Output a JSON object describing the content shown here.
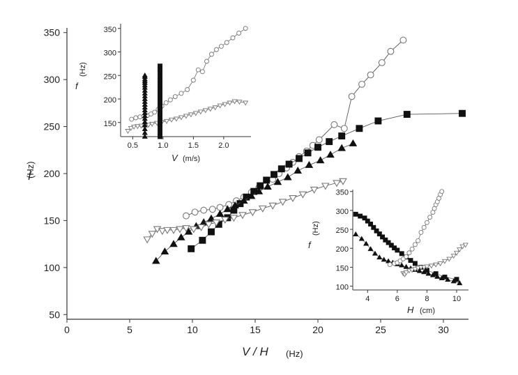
{
  "chart_data": [
    {
      "id": "main",
      "type": "scatter",
      "xlabel": "V / H",
      "xunit": "(Hz)",
      "ylabel": "f",
      "yunit": "(Hz)",
      "xlim": [
        0,
        32
      ],
      "ylim": [
        45,
        355
      ],
      "xticks": [
        0,
        5,
        10,
        15,
        20,
        25,
        30
      ],
      "yticks": [
        50,
        100,
        150,
        200,
        250,
        300,
        350
      ],
      "grid": false,
      "series": [
        {
          "marker": "circle-open",
          "x": [
            9.5,
            10.2,
            10.9,
            11.6,
            12.2,
            12.9,
            13.5,
            14.1,
            14.7,
            15.3,
            15.8,
            16.4,
            16.9,
            17.5,
            18.0,
            18.5,
            19.1,
            19.6,
            20.1,
            21.3,
            22.1,
            22.7,
            23.5,
            24.2,
            25.1,
            25.8,
            26.8
          ],
          "y": [
            155,
            159,
            161,
            162,
            164,
            167,
            171,
            175,
            180,
            185,
            188,
            194,
            200,
            206,
            212,
            218,
            224,
            230,
            236,
            252,
            248,
            282,
            295,
            305,
            318,
            330,
            342
          ]
        },
        {
          "marker": "square-filled",
          "x": [
            9.9,
            10.8,
            11.5,
            12.1,
            12.8,
            13.3,
            13.8,
            14.3,
            14.9,
            15.4,
            15.9,
            16.5,
            17.1,
            17.7,
            18.5,
            19.2,
            20.0,
            20.9,
            21.9,
            23.3,
            24.8,
            27.1,
            31.5
          ],
          "y": [
            120,
            129,
            138,
            146,
            153,
            161,
            168,
            175,
            181,
            187,
            193,
            199,
            205,
            210,
            216,
            222,
            228,
            234,
            240,
            248,
            256,
            263,
            264
          ]
        },
        {
          "marker": "triangle-filled",
          "x": [
            7.1,
            7.8,
            8.5,
            9.1,
            9.7,
            10.3,
            10.9,
            11.5,
            12.2,
            12.8,
            13.4,
            14.1,
            14.7,
            15.3,
            16.0,
            16.8,
            17.6,
            18.4,
            19.3,
            20.2,
            21.0,
            21.9,
            22.8
          ],
          "y": [
            107,
            117,
            125,
            132,
            138,
            144,
            148,
            152,
            157,
            162,
            166,
            171,
            176,
            181,
            186,
            191,
            196,
            203,
            209,
            214,
            220,
            227,
            232
          ]
        },
        {
          "marker": "triangle-down-open",
          "x": [
            6.4,
            6.8,
            7.2,
            7.6,
            8.0,
            8.5,
            9.0,
            9.5,
            10.1,
            10.7,
            11.3,
            11.9,
            12.6,
            13.3,
            14.0,
            14.8,
            15.6,
            16.4,
            17.2,
            18.0,
            18.8,
            19.7,
            20.6,
            21.5,
            22.0
          ],
          "y": [
            130,
            136,
            141,
            139,
            140,
            140,
            141,
            142,
            141,
            143,
            146,
            148,
            151,
            153,
            156,
            159,
            163,
            166,
            170,
            174,
            178,
            183,
            187,
            190,
            192
          ]
        }
      ]
    },
    {
      "id": "inset-velocity",
      "type": "scatter",
      "xlabel": "V",
      "xunit": "(m/s)",
      "ylabel": "f",
      "yunit": "(Hz)",
      "xlim": [
        0.3,
        2.45
      ],
      "ylim": [
        120,
        360
      ],
      "xticks": [
        0.5,
        1.0,
        1.5,
        2.0
      ],
      "xticklabels": [
        "0.5",
        "1.0",
        "1.5",
        "2.0"
      ],
      "yticks": [
        150,
        200,
        250,
        300,
        350
      ],
      "grid": false,
      "series": [
        {
          "marker": "circle-open",
          "x": [
            0.48,
            0.55,
            0.62,
            0.68,
            0.74,
            0.8,
            0.86,
            0.92,
            0.98,
            1.05,
            1.12,
            1.2,
            1.3,
            1.4,
            1.5,
            1.58,
            1.65,
            1.72,
            1.8,
            1.88,
            1.96,
            2.05,
            2.15,
            2.25,
            2.36
          ],
          "y": [
            157,
            160,
            162,
            163,
            165,
            168,
            172,
            178,
            185,
            192,
            198,
            205,
            212,
            220,
            240,
            262,
            258,
            280,
            295,
            305,
            312,
            320,
            330,
            340,
            350
          ]
        },
        {
          "marker": "triangle-down-open",
          "x": [
            0.42,
            0.47,
            0.52,
            0.58,
            0.64,
            0.7,
            0.76,
            0.82,
            0.9,
            0.98,
            1.06,
            1.14,
            1.22,
            1.3,
            1.38,
            1.46,
            1.54,
            1.62,
            1.7,
            1.78,
            1.86,
            1.94,
            2.02,
            2.1,
            2.18,
            2.26,
            2.36
          ],
          "y": [
            132,
            138,
            141,
            142,
            143,
            144,
            145,
            147,
            149,
            151,
            153,
            156,
            158,
            161,
            164,
            167,
            170,
            173,
            176,
            179,
            182,
            186,
            189,
            192,
            195,
            194,
            192
          ]
        },
        {
          "marker": "triangle-filled",
          "x": [
            0.7,
            0.7,
            0.7,
            0.7,
            0.7,
            0.7,
            0.7,
            0.7,
            0.7,
            0.7,
            0.7,
            0.7,
            0.7,
            0.7,
            0.7,
            0.7,
            0.7,
            0.7,
            0.7,
            0.7,
            0.7,
            0.7,
            0.7
          ],
          "y": [
            120,
            128,
            136,
            144,
            151,
            158,
            164,
            170,
            176,
            182,
            188,
            194,
            200,
            206,
            212,
            218,
            224,
            229,
            234,
            238,
            242,
            247,
            250
          ]
        },
        {
          "marker": "square-filled",
          "x": [
            0.95,
            0.95,
            0.95,
            0.95,
            0.95,
            0.95,
            0.95,
            0.95,
            0.95,
            0.95,
            0.95,
            0.95,
            0.95,
            0.95,
            0.95,
            0.95,
            0.95,
            0.95,
            0.95,
            0.95,
            0.95,
            0.95,
            0.95
          ],
          "y": [
            120,
            129,
            138,
            146,
            153,
            161,
            168,
            175,
            181,
            187,
            193,
            199,
            205,
            210,
            216,
            222,
            228,
            234,
            240,
            248,
            256,
            263,
            270
          ]
        }
      ]
    },
    {
      "id": "inset-height",
      "type": "scatter",
      "xlabel": "H",
      "xunit": "(cm)",
      "ylabel": "f",
      "yunit": "(Hz)",
      "xlim": [
        3.0,
        10.8
      ],
      "ylim": [
        90,
        355
      ],
      "xticks": [
        4,
        6,
        8,
        10
      ],
      "yticks": [
        100,
        150,
        200,
        250,
        300,
        350
      ],
      "grid": false,
      "series": [
        {
          "marker": "square-filled",
          "x": [
            3.2,
            3.5,
            3.8,
            4.0,
            4.2,
            4.4,
            4.6,
            4.8,
            5.0,
            5.2,
            5.4,
            5.6,
            5.8,
            6.0,
            6.3,
            6.6,
            6.9,
            7.2,
            7.6,
            8.0,
            8.6,
            9.2,
            10.0
          ],
          "y": [
            290,
            285,
            280,
            272,
            264,
            255,
            246,
            238,
            230,
            222,
            215,
            208,
            201,
            195,
            186,
            177,
            168,
            160,
            150,
            142,
            133,
            124,
            118
          ]
        },
        {
          "marker": "triangle-filled",
          "x": [
            3.2,
            3.6,
            3.9,
            4.2,
            4.5,
            4.8,
            5.1,
            5.4,
            5.7,
            6.0,
            6.3,
            6.6,
            6.9,
            7.2,
            7.5,
            7.8,
            8.1,
            8.4,
            8.7,
            9.0,
            9.4,
            9.8,
            10.2
          ],
          "y": [
            237,
            225,
            212,
            198,
            186,
            176,
            170,
            166,
            162,
            158,
            155,
            151,
            147,
            143,
            140,
            137,
            133,
            129,
            125,
            121,
            117,
            113,
            108
          ]
        },
        {
          "marker": "circle-open",
          "x": [
            5.5,
            5.8,
            6.0,
            6.2,
            6.4,
            6.6,
            6.8,
            7.0,
            7.2,
            7.4,
            7.6,
            7.8,
            8.0,
            8.2,
            8.4,
            8.5,
            8.6,
            8.7,
            8.8,
            8.9,
            9.0
          ],
          "y": [
            157,
            160,
            162,
            167,
            172,
            178,
            188,
            198,
            210,
            220,
            242,
            255,
            268,
            282,
            295,
            305,
            315,
            323,
            332,
            342,
            350
          ]
        },
        {
          "marker": "triangle-down-open",
          "x": [
            6.4,
            6.5,
            6.6,
            6.8,
            7.0,
            7.2,
            7.4,
            7.6,
            7.8,
            8.0,
            8.3,
            8.6,
            8.9,
            9.2,
            9.5,
            9.8,
            10.0,
            10.2,
            10.4,
            10.6
          ],
          "y": [
            134,
            131,
            136,
            141,
            143,
            145,
            148,
            150,
            150,
            152,
            154,
            157,
            160,
            166,
            172,
            180,
            188,
            197,
            205,
            209
          ]
        }
      ]
    }
  ]
}
